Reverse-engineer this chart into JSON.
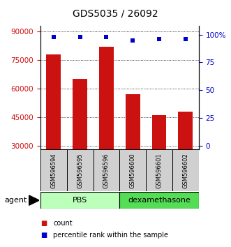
{
  "title": "GDS5035 / 26092",
  "samples": [
    "GSM596594",
    "GSM596595",
    "GSM596596",
    "GSM596600",
    "GSM596601",
    "GSM596602"
  ],
  "bar_values": [
    78000,
    65000,
    82000,
    57000,
    46000,
    48000
  ],
  "percentile_values": [
    98,
    98,
    98,
    95,
    96,
    96
  ],
  "bar_color": "#cc1111",
  "percentile_color": "#0000cc",
  "ylim_left": [
    28000,
    93000
  ],
  "yticks_left": [
    30000,
    45000,
    60000,
    75000,
    90000
  ],
  "ylim_right": [
    -3.28125,
    107.8125
  ],
  "yticks_right": [
    0,
    25,
    50,
    75,
    100
  ],
  "yticklabels_right": [
    "0",
    "25",
    "50",
    "75",
    "100%"
  ],
  "groups": [
    {
      "label": "PBS",
      "indices": [
        0,
        1,
        2
      ],
      "color": "#bbffbb"
    },
    {
      "label": "dexamethasone",
      "indices": [
        3,
        4,
        5
      ],
      "color": "#55dd55"
    }
  ],
  "agent_label": "agent",
  "legend_count_label": "count",
  "legend_percentile_label": "percentile rank within the sample",
  "left_tick_color": "#cc1111",
  "right_tick_color": "#0000cc",
  "title_fontsize": 10,
  "tick_label_fontsize": 7.5,
  "bar_width": 0.55,
  "sample_label_fontsize": 6,
  "group_label_fontsize": 8,
  "legend_fontsize": 7
}
